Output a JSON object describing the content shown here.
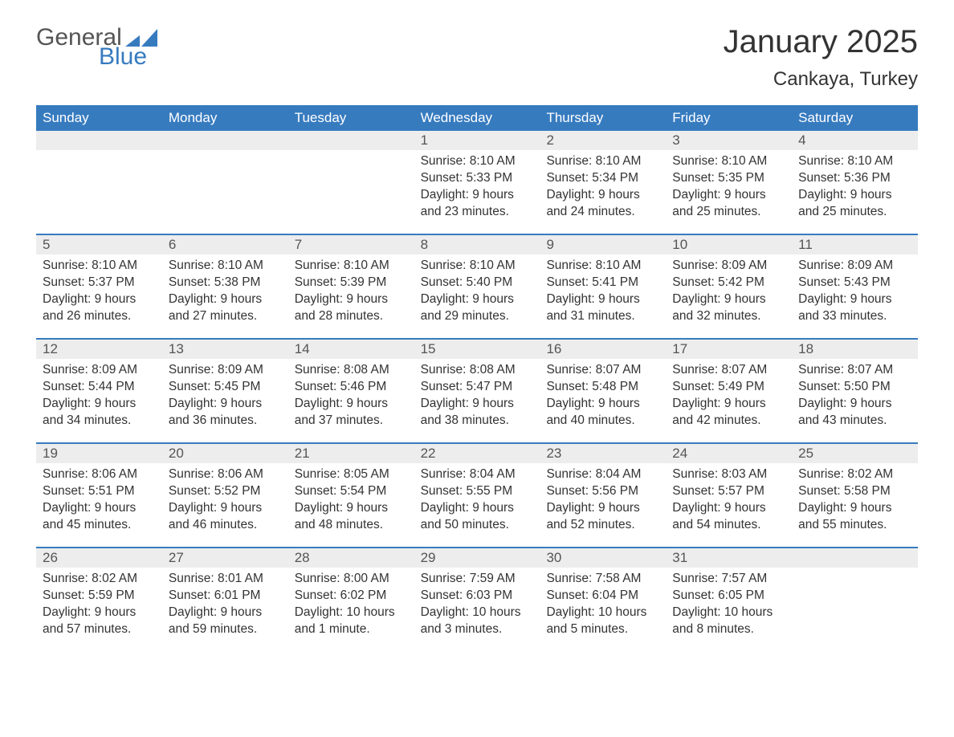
{
  "brand": {
    "word1": "General",
    "word2": "Blue",
    "word1_color": "#555555",
    "word2_color": "#377bbf",
    "triangle_color": "#377bbf"
  },
  "title": "January 2025",
  "location": "Cankaya, Turkey",
  "colors": {
    "header_bg": "#377bbf",
    "header_text": "#ffffff",
    "daynum_bg": "#ededed",
    "daynum_text": "#555555",
    "body_text": "#333333",
    "week_border": "#377bbf",
    "page_bg": "#ffffff"
  },
  "fonts": {
    "title_size_pt": 30,
    "location_size_pt": 18,
    "dayheader_size_pt": 13,
    "cell_size_pt": 12
  },
  "day_headers": [
    "Sunday",
    "Monday",
    "Tuesday",
    "Wednesday",
    "Thursday",
    "Friday",
    "Saturday"
  ],
  "weeks": [
    [
      {
        "day": "",
        "sunrise": "",
        "sunset": "",
        "daylight": ""
      },
      {
        "day": "",
        "sunrise": "",
        "sunset": "",
        "daylight": ""
      },
      {
        "day": "",
        "sunrise": "",
        "sunset": "",
        "daylight": ""
      },
      {
        "day": "1",
        "sunrise": "Sunrise: 8:10 AM",
        "sunset": "Sunset: 5:33 PM",
        "daylight": "Daylight: 9 hours and 23 minutes."
      },
      {
        "day": "2",
        "sunrise": "Sunrise: 8:10 AM",
        "sunset": "Sunset: 5:34 PM",
        "daylight": "Daylight: 9 hours and 24 minutes."
      },
      {
        "day": "3",
        "sunrise": "Sunrise: 8:10 AM",
        "sunset": "Sunset: 5:35 PM",
        "daylight": "Daylight: 9 hours and 25 minutes."
      },
      {
        "day": "4",
        "sunrise": "Sunrise: 8:10 AM",
        "sunset": "Sunset: 5:36 PM",
        "daylight": "Daylight: 9 hours and 25 minutes."
      }
    ],
    [
      {
        "day": "5",
        "sunrise": "Sunrise: 8:10 AM",
        "sunset": "Sunset: 5:37 PM",
        "daylight": "Daylight: 9 hours and 26 minutes."
      },
      {
        "day": "6",
        "sunrise": "Sunrise: 8:10 AM",
        "sunset": "Sunset: 5:38 PM",
        "daylight": "Daylight: 9 hours and 27 minutes."
      },
      {
        "day": "7",
        "sunrise": "Sunrise: 8:10 AM",
        "sunset": "Sunset: 5:39 PM",
        "daylight": "Daylight: 9 hours and 28 minutes."
      },
      {
        "day": "8",
        "sunrise": "Sunrise: 8:10 AM",
        "sunset": "Sunset: 5:40 PM",
        "daylight": "Daylight: 9 hours and 29 minutes."
      },
      {
        "day": "9",
        "sunrise": "Sunrise: 8:10 AM",
        "sunset": "Sunset: 5:41 PM",
        "daylight": "Daylight: 9 hours and 31 minutes."
      },
      {
        "day": "10",
        "sunrise": "Sunrise: 8:09 AM",
        "sunset": "Sunset: 5:42 PM",
        "daylight": "Daylight: 9 hours and 32 minutes."
      },
      {
        "day": "11",
        "sunrise": "Sunrise: 8:09 AM",
        "sunset": "Sunset: 5:43 PM",
        "daylight": "Daylight: 9 hours and 33 minutes."
      }
    ],
    [
      {
        "day": "12",
        "sunrise": "Sunrise: 8:09 AM",
        "sunset": "Sunset: 5:44 PM",
        "daylight": "Daylight: 9 hours and 34 minutes."
      },
      {
        "day": "13",
        "sunrise": "Sunrise: 8:09 AM",
        "sunset": "Sunset: 5:45 PM",
        "daylight": "Daylight: 9 hours and 36 minutes."
      },
      {
        "day": "14",
        "sunrise": "Sunrise: 8:08 AM",
        "sunset": "Sunset: 5:46 PM",
        "daylight": "Daylight: 9 hours and 37 minutes."
      },
      {
        "day": "15",
        "sunrise": "Sunrise: 8:08 AM",
        "sunset": "Sunset: 5:47 PM",
        "daylight": "Daylight: 9 hours and 38 minutes."
      },
      {
        "day": "16",
        "sunrise": "Sunrise: 8:07 AM",
        "sunset": "Sunset: 5:48 PM",
        "daylight": "Daylight: 9 hours and 40 minutes."
      },
      {
        "day": "17",
        "sunrise": "Sunrise: 8:07 AM",
        "sunset": "Sunset: 5:49 PM",
        "daylight": "Daylight: 9 hours and 42 minutes."
      },
      {
        "day": "18",
        "sunrise": "Sunrise: 8:07 AM",
        "sunset": "Sunset: 5:50 PM",
        "daylight": "Daylight: 9 hours and 43 minutes."
      }
    ],
    [
      {
        "day": "19",
        "sunrise": "Sunrise: 8:06 AM",
        "sunset": "Sunset: 5:51 PM",
        "daylight": "Daylight: 9 hours and 45 minutes."
      },
      {
        "day": "20",
        "sunrise": "Sunrise: 8:06 AM",
        "sunset": "Sunset: 5:52 PM",
        "daylight": "Daylight: 9 hours and 46 minutes."
      },
      {
        "day": "21",
        "sunrise": "Sunrise: 8:05 AM",
        "sunset": "Sunset: 5:54 PM",
        "daylight": "Daylight: 9 hours and 48 minutes."
      },
      {
        "day": "22",
        "sunrise": "Sunrise: 8:04 AM",
        "sunset": "Sunset: 5:55 PM",
        "daylight": "Daylight: 9 hours and 50 minutes."
      },
      {
        "day": "23",
        "sunrise": "Sunrise: 8:04 AM",
        "sunset": "Sunset: 5:56 PM",
        "daylight": "Daylight: 9 hours and 52 minutes."
      },
      {
        "day": "24",
        "sunrise": "Sunrise: 8:03 AM",
        "sunset": "Sunset: 5:57 PM",
        "daylight": "Daylight: 9 hours and 54 minutes."
      },
      {
        "day": "25",
        "sunrise": "Sunrise: 8:02 AM",
        "sunset": "Sunset: 5:58 PM",
        "daylight": "Daylight: 9 hours and 55 minutes."
      }
    ],
    [
      {
        "day": "26",
        "sunrise": "Sunrise: 8:02 AM",
        "sunset": "Sunset: 5:59 PM",
        "daylight": "Daylight: 9 hours and 57 minutes."
      },
      {
        "day": "27",
        "sunrise": "Sunrise: 8:01 AM",
        "sunset": "Sunset: 6:01 PM",
        "daylight": "Daylight: 9 hours and 59 minutes."
      },
      {
        "day": "28",
        "sunrise": "Sunrise: 8:00 AM",
        "sunset": "Sunset: 6:02 PM",
        "daylight": "Daylight: 10 hours and 1 minute."
      },
      {
        "day": "29",
        "sunrise": "Sunrise: 7:59 AM",
        "sunset": "Sunset: 6:03 PM",
        "daylight": "Daylight: 10 hours and 3 minutes."
      },
      {
        "day": "30",
        "sunrise": "Sunrise: 7:58 AM",
        "sunset": "Sunset: 6:04 PM",
        "daylight": "Daylight: 10 hours and 5 minutes."
      },
      {
        "day": "31",
        "sunrise": "Sunrise: 7:57 AM",
        "sunset": "Sunset: 6:05 PM",
        "daylight": "Daylight: 10 hours and 8 minutes."
      },
      {
        "day": "",
        "sunrise": "",
        "sunset": "",
        "daylight": ""
      }
    ]
  ]
}
